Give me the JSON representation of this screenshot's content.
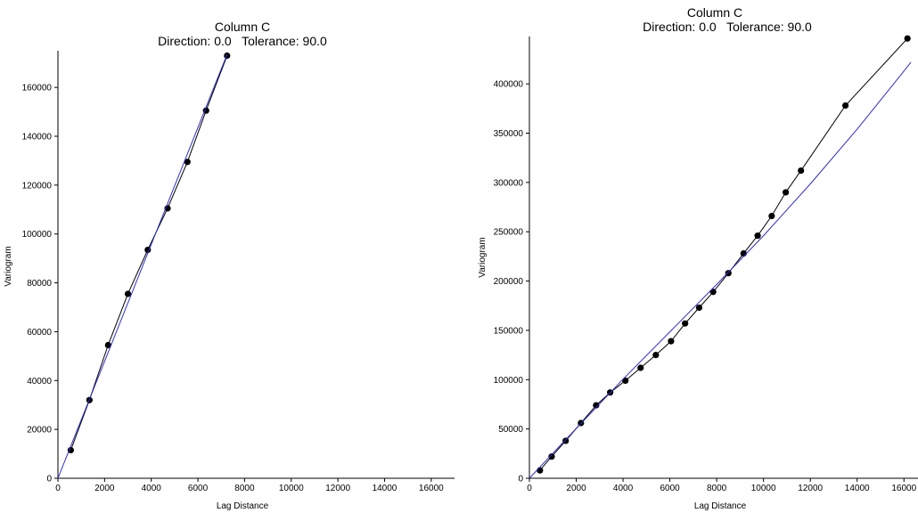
{
  "colors": {
    "observed": "#000000",
    "model": "#2e2ec8",
    "axis": "#000000",
    "background": "#ffffff"
  },
  "chart_data": [
    {
      "type": "line",
      "title": "Column C",
      "subtitle": "Direction: 0.0   Tolerance: 90.0",
      "xlabel": "Lag Distance",
      "ylabel": "Variogram",
      "xlim": [
        0,
        17000
      ],
      "ylim": [
        0,
        175000
      ],
      "x_ticks": [
        0,
        2000,
        4000,
        6000,
        8000,
        10000,
        12000,
        14000,
        16000
      ],
      "y_ticks": [
        0,
        20000,
        40000,
        60000,
        80000,
        100000,
        120000,
        140000,
        160000
      ],
      "grid": false,
      "series": [
        {
          "role": "experimental",
          "markers": true,
          "x": [
            550,
            1350,
            2150,
            3000,
            3850,
            4700,
            5550,
            6350,
            7250
          ],
          "y": [
            11500,
            32000,
            54500,
            75500,
            93500,
            110500,
            129500,
            150500,
            173000
          ]
        },
        {
          "role": "model",
          "markers": false,
          "x": [
            0,
            7250
          ],
          "y": [
            0,
            173500
          ]
        }
      ]
    },
    {
      "type": "line",
      "title": "Column C",
      "subtitle": "Direction: 0.0   Tolerance: 90.0",
      "xlabel": "Lag Distance",
      "ylabel": "Variogram",
      "xlim": [
        0,
        16600
      ],
      "ylim": [
        0,
        448000
      ],
      "x_ticks": [
        0,
        2000,
        4000,
        6000,
        8000,
        10000,
        12000,
        14000,
        16000
      ],
      "y_ticks": [
        0,
        50000,
        100000,
        150000,
        200000,
        250000,
        300000,
        350000,
        400000
      ],
      "grid": false,
      "series": [
        {
          "role": "experimental",
          "markers": true,
          "x": [
            450,
            950,
            1550,
            2200,
            2850,
            3450,
            4100,
            4750,
            5400,
            6050,
            6650,
            7250,
            7850,
            8500,
            9150,
            9750,
            10350,
            10950,
            11600,
            13500,
            16150
          ],
          "y": [
            8000,
            22000,
            38000,
            56000,
            74000,
            87000,
            99000,
            112000,
            125000,
            139000,
            157000,
            173000,
            189000,
            208000,
            228000,
            246000,
            266000,
            290000,
            312000,
            378000,
            446000
          ]
        },
        {
          "role": "model",
          "markers": false,
          "x": [
            0,
            2000,
            4000,
            6000,
            8000,
            10000,
            12000,
            14000,
            16000,
            16300
          ],
          "y": [
            0,
            50500,
            100500,
            148500,
            196500,
            246000,
            298500,
            354000,
            413000,
            422000
          ]
        }
      ]
    }
  ]
}
